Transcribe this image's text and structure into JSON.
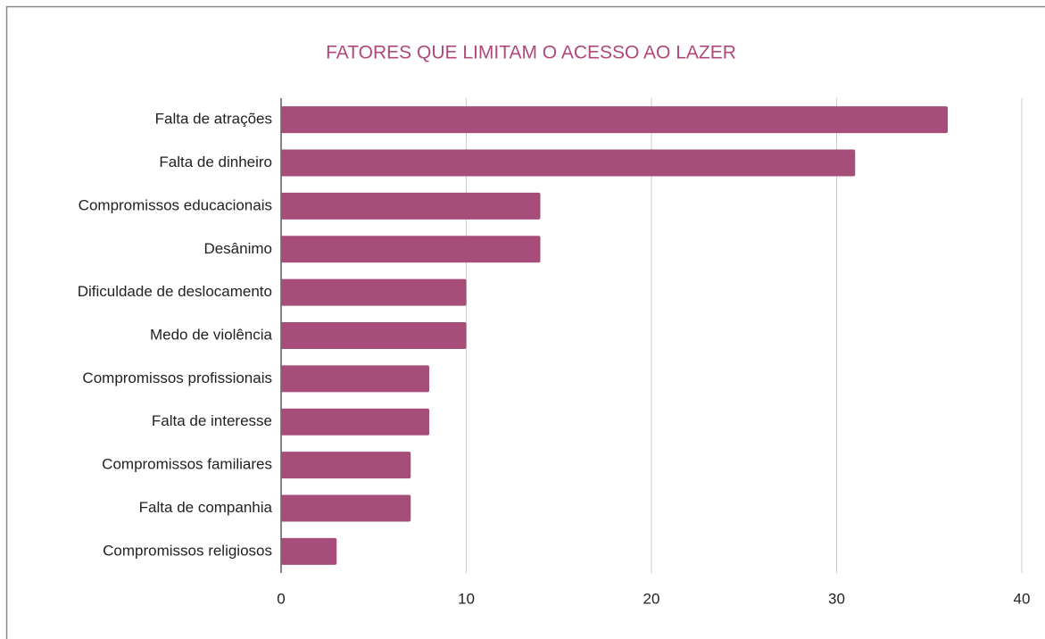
{
  "chart_data": {
    "type": "bar",
    "orientation": "horizontal",
    "title": "FATORES QUE LIMITAM O ACESSO AO LAZER",
    "categories": [
      "Falta de atrações",
      "Falta de dinheiro",
      "Compromissos  educacionais",
      "Desânimo",
      "Dificuldade de deslocamento",
      "Medo de violência",
      "Compromissos profissionais",
      "Falta de interesse",
      "Compromissos familiares",
      "Falta de companhia",
      "Compromissos religiosos"
    ],
    "values": [
      36,
      31,
      14,
      14,
      10,
      10,
      8,
      8,
      7,
      7,
      3
    ],
    "color": "#a64d79",
    "xlim": [
      0,
      40
    ],
    "xticks": [
      0,
      10,
      20,
      30,
      40
    ],
    "grid": true
  }
}
